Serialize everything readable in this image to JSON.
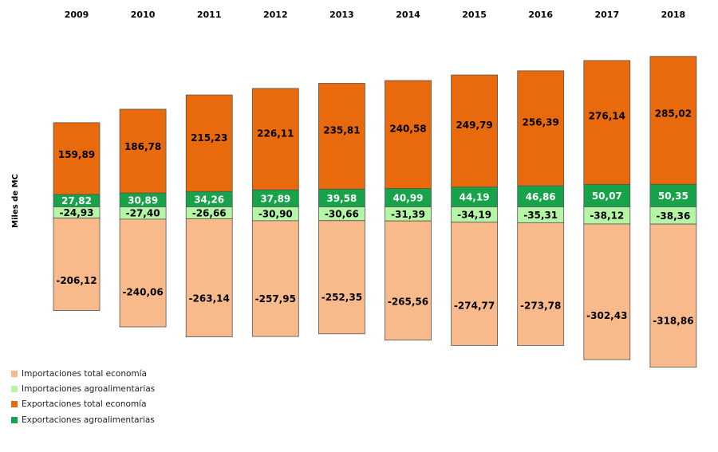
{
  "chart_data": {
    "type": "bar",
    "stacked": true,
    "title": "",
    "ylabel": "Miles de MC",
    "xlabel": "",
    "categories": [
      "2009",
      "2010",
      "2011",
      "2012",
      "2013",
      "2014",
      "2015",
      "2016",
      "2017",
      "2018"
    ],
    "series": [
      {
        "name": "Importaciones total economía",
        "color": "#f8b98b",
        "values": [
          -206.12,
          -240.06,
          -263.14,
          -257.95,
          -252.35,
          -265.56,
          -274.77,
          -273.78,
          -302.43,
          -318.86
        ],
        "labels": [
          "-206,12",
          "-240,06",
          "-263,14",
          "-257,95",
          "-252,35",
          "-265,56",
          "-274,77",
          "-273,78",
          "-302,43",
          "-318,86"
        ]
      },
      {
        "name": "Importaciones agroalimentarias",
        "color": "#b4f5a6",
        "values": [
          -24.93,
          -27.4,
          -26.66,
          -30.9,
          -30.66,
          -31.39,
          -34.19,
          -35.31,
          -38.12,
          -38.36
        ],
        "labels": [
          "-24,93",
          "-27,40",
          "-26,66",
          "-30,90",
          "-30,66",
          "-31,39",
          "-34,19",
          "-35,31",
          "-38,12",
          "-38,36"
        ]
      },
      {
        "name": "Exportaciones total economía",
        "color": "#e86a0c",
        "values": [
          159.89,
          186.78,
          215.23,
          226.11,
          235.81,
          240.58,
          249.79,
          256.39,
          276.14,
          285.02
        ],
        "labels": [
          "159,89",
          "186,78",
          "215,23",
          "226,11",
          "235,81",
          "240,58",
          "249,79",
          "256,39",
          "276,14",
          "285,02"
        ]
      },
      {
        "name": "Exportaciones agroalimentarias",
        "color": "#16a34a",
        "values": [
          27.82,
          30.89,
          34.26,
          37.89,
          39.58,
          40.99,
          44.19,
          46.86,
          50.07,
          50.35
        ],
        "labels": [
          "27,82",
          "30,89",
          "34,26",
          "37,89",
          "39,58",
          "40,99",
          "44,19",
          "46,86",
          "50,07",
          "50,35"
        ]
      }
    ],
    "legend_position": "bottom-left",
    "grid": false
  }
}
